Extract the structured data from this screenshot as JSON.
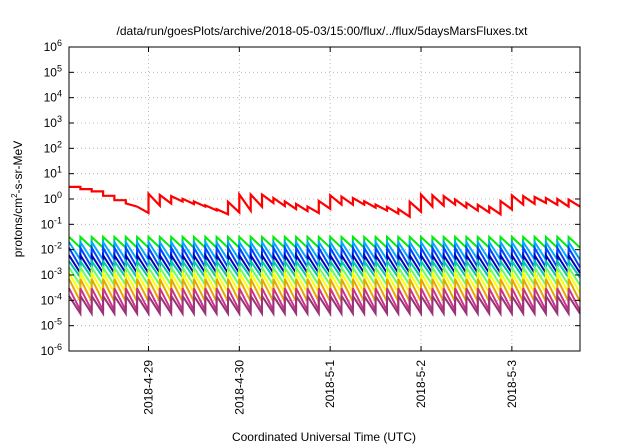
{
  "chart_data": {
    "type": "line",
    "title": "/data/run/goesPlots/archive/2018-05-03/15:00/flux/../flux/5daysMarsFluxes.txt",
    "xlabel": "Coordinated Universal Time (UTC)",
    "ylabel": {
      "base": "protons/cm",
      "sup": "2",
      "rest": "-s-sr-MeV"
    },
    "yscale": "log",
    "ylim": [
      1e-06,
      1000000.0
    ],
    "yticks": [
      {
        "value": 1e-06,
        "base": "10",
        "exp": "-6"
      },
      {
        "value": 1e-05,
        "base": "10",
        "exp": "-5"
      },
      {
        "value": 0.0001,
        "base": "10",
        "exp": "-4"
      },
      {
        "value": 0.001,
        "base": "10",
        "exp": "-3"
      },
      {
        "value": 0.01,
        "base": "10",
        "exp": "-2"
      },
      {
        "value": 0.1,
        "base": "10",
        "exp": "-1"
      },
      {
        "value": 1,
        "base": "10",
        "exp": "0"
      },
      {
        "value": 10,
        "base": "10",
        "exp": "1"
      },
      {
        "value": 100,
        "base": "10",
        "exp": "2"
      },
      {
        "value": 1000,
        "base": "10",
        "exp": "3"
      },
      {
        "value": 10000,
        "base": "10",
        "exp": "4"
      },
      {
        "value": 100000,
        "base": "10",
        "exp": "5"
      },
      {
        "value": 1000000,
        "base": "10",
        "exp": "6"
      }
    ],
    "xlim": [
      "2018-04-28T03:00",
      "2018-05-03T18:00"
    ],
    "xticks": [
      {
        "value": "2018-04-29T00:00",
        "label": "2018-4-29"
      },
      {
        "value": "2018-04-30T00:00",
        "label": "2018-4-30"
      },
      {
        "value": "2018-05-01T00:00",
        "label": "2018-5-1"
      },
      {
        "value": "2018-05-02T00:00",
        "label": "2018-5-2"
      },
      {
        "value": "2018-05-03T00:00",
        "label": "2018-5-3"
      }
    ],
    "grid": true,
    "legend": "none",
    "sawtooth_period_hours": 3,
    "series": [
      {
        "color": "#ff0000",
        "width": 2.2,
        "envelope": [
          {
            "x": "2018-04-28T03:00",
            "hi": 3.0,
            "lo": 3.0
          },
          {
            "x": "2018-04-28T09:00",
            "hi": 2.0,
            "lo": 2.0
          },
          {
            "x": "2018-04-28T15:00",
            "hi": 0.9,
            "lo": 0.9
          },
          {
            "x": "2018-04-28T21:00",
            "hi": 0.5,
            "lo": 0.28
          },
          {
            "x": "2018-04-29T00:00",
            "hi": 1.6,
            "lo": 0.55
          },
          {
            "x": "2018-04-29T06:00",
            "hi": 1.3,
            "lo": 0.8
          },
          {
            "x": "2018-04-29T12:00",
            "hi": 0.8,
            "lo": 0.5
          },
          {
            "x": "2018-04-29T18:00",
            "hi": 0.4,
            "lo": 0.25
          },
          {
            "x": "2018-04-30T00:00",
            "hi": 1.5,
            "lo": 0.35
          },
          {
            "x": "2018-04-30T06:00",
            "hi": 1.5,
            "lo": 0.7
          },
          {
            "x": "2018-04-30T12:00",
            "hi": 0.8,
            "lo": 0.4
          },
          {
            "x": "2018-04-30T18:00",
            "hi": 0.5,
            "lo": 0.28
          },
          {
            "x": "2018-05-01T00:00",
            "hi": 1.4,
            "lo": 0.6
          },
          {
            "x": "2018-05-01T06:00",
            "hi": 1.1,
            "lo": 0.6
          },
          {
            "x": "2018-05-01T12:00",
            "hi": 0.6,
            "lo": 0.35
          },
          {
            "x": "2018-05-01T18:00",
            "hi": 0.4,
            "lo": 0.2
          },
          {
            "x": "2018-05-02T00:00",
            "hi": 1.5,
            "lo": 0.5
          },
          {
            "x": "2018-05-02T06:00",
            "hi": 1.3,
            "lo": 0.6
          },
          {
            "x": "2018-05-02T12:00",
            "hi": 0.7,
            "lo": 0.35
          },
          {
            "x": "2018-05-02T18:00",
            "hi": 0.5,
            "lo": 0.25
          },
          {
            "x": "2018-05-03T00:00",
            "hi": 1.4,
            "lo": 0.6
          },
          {
            "x": "2018-05-03T06:00",
            "hi": 1.2,
            "lo": 0.7
          },
          {
            "x": "2018-05-03T12:00",
            "hi": 1.0,
            "lo": 0.5
          },
          {
            "x": "2018-05-03T18:00",
            "hi": 0.9,
            "lo": 0.5
          }
        ]
      },
      {
        "color": "#00ee00",
        "width": 2,
        "hi": 0.032,
        "lo": 0.012
      },
      {
        "color": "#00aaff",
        "width": 2,
        "hi": 0.02,
        "lo": 0.004
      },
      {
        "color": "#0044ff",
        "width": 2,
        "hi": 0.012,
        "lo": 0.002
      },
      {
        "color": "#0000bb",
        "width": 2,
        "hi": 0.006,
        "lo": 0.0012
      },
      {
        "color": "#00c8aa",
        "width": 2,
        "hi": 0.0035,
        "lo": 0.0008
      },
      {
        "color": "#66ff66",
        "width": 2,
        "hi": 0.002,
        "lo": 0.0004
      },
      {
        "color": "#ffff00",
        "width": 2,
        "hi": 0.0012,
        "lo": 0.0002
      },
      {
        "color": "#e6a800",
        "width": 2,
        "hi": 0.0007,
        "lo": 9e-05
      },
      {
        "color": "#cc3388",
        "width": 2,
        "hi": 0.0003,
        "lo": 4e-05
      },
      {
        "color": "#993377",
        "width": 2,
        "hi": 0.00015,
        "lo": 3e-05
      }
    ]
  }
}
